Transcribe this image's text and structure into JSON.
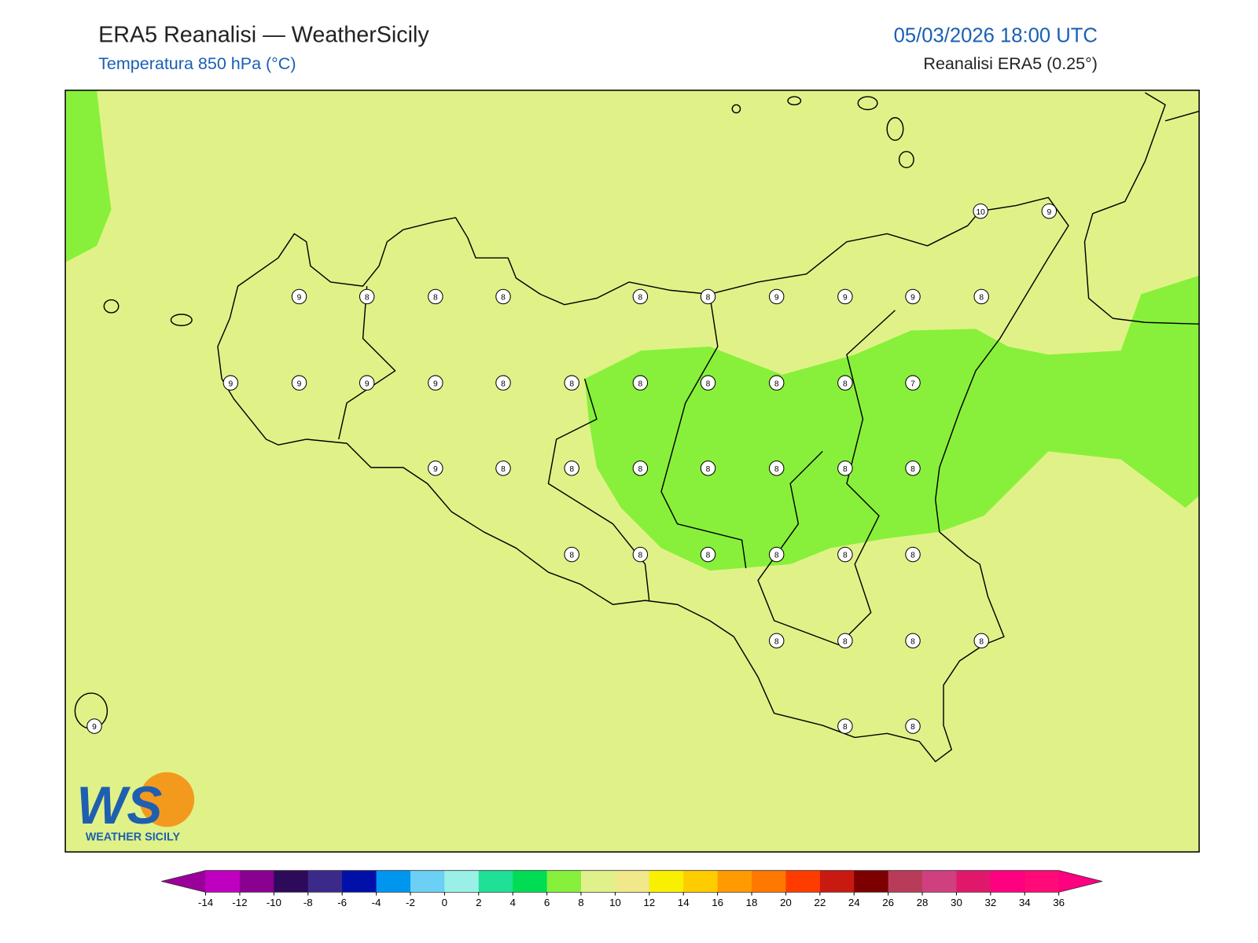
{
  "header": {
    "title": "ERA5 Reanalisi — WeatherSicily",
    "subtitle": "Temperatura 850 hPa (°C)",
    "datetime": "05/03/2026 18:00 UTC",
    "source": "Reanalisi ERA5 (0.25°)"
  },
  "map": {
    "station_values": [
      10,
      9,
      9,
      8,
      8,
      8,
      8,
      8,
      9,
      9,
      9,
      8,
      9,
      9,
      9,
      9,
      8,
      8,
      8,
      8,
      8,
      8,
      7,
      9,
      8,
      8,
      8,
      8,
      8,
      8,
      8,
      8,
      8,
      8,
      8,
      8,
      8,
      8,
      8,
      8,
      8,
      9,
      8,
      8
    ],
    "field_color": "#e0f287",
    "cold_field_color": "#88f03a"
  },
  "logo": {
    "mark": "WS",
    "name": "WEATHER SICILY"
  },
  "colorbar": {
    "ticks": [
      -14,
      -12,
      -10,
      -8,
      -6,
      -4,
      -2,
      0,
      2,
      4,
      6,
      8,
      10,
      12,
      14,
      16,
      18,
      20,
      22,
      24,
      26,
      28,
      30,
      32,
      34,
      36
    ],
    "colors": [
      "#c000c0",
      "#8a0090",
      "#2d0a5a",
      "#3b2a8a",
      "#0010a8",
      "#0096f0",
      "#6cd0f5",
      "#9af0e6",
      "#1ee096",
      "#00dd55",
      "#86f03c",
      "#e0f08a",
      "#f0e88a",
      "#f8f000",
      "#ffcc00",
      "#ff9a00",
      "#ff7800",
      "#ff3c00",
      "#c81a10",
      "#7d0000",
      "#b83c5a",
      "#d04080",
      "#e0186c",
      "#ff0080",
      "#ff0a78"
    ],
    "under_color": "#9b009b",
    "over_color": "#ff0080"
  }
}
